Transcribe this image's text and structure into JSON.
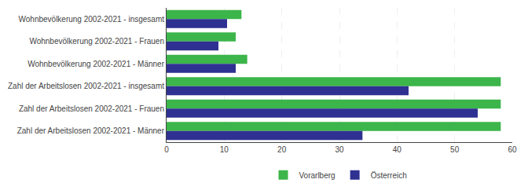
{
  "chart_data": {
    "type": "bar",
    "orientation": "horizontal",
    "categories": [
      "Wohnbevölkerung 2002-2021 - insgesamt",
      "Wohnbevölkerung 2002-2021 - Frauen",
      "Wohnbevölkerung 2002-2021 - Männer",
      "Zahl der Arbeitslosen 2002-2021 - insgesamt",
      "Zahl der Arbeitslosen 2002-2021 - Frauen",
      "Zahl der Arbeitslosen 2002-2021 - Männer"
    ],
    "series": [
      {
        "name": "Vorarlberg",
        "color": "#3cb54a",
        "values": [
          13,
          12,
          14,
          58,
          58,
          58
        ]
      },
      {
        "name": "Österreich",
        "color": "#2e3191",
        "values": [
          10.5,
          9,
          12,
          42,
          54,
          34
        ]
      }
    ],
    "xlim": [
      0,
      60
    ],
    "xticks": [
      0,
      10,
      20,
      30,
      40,
      50,
      60
    ],
    "grid": true,
    "legend": "bottom"
  }
}
